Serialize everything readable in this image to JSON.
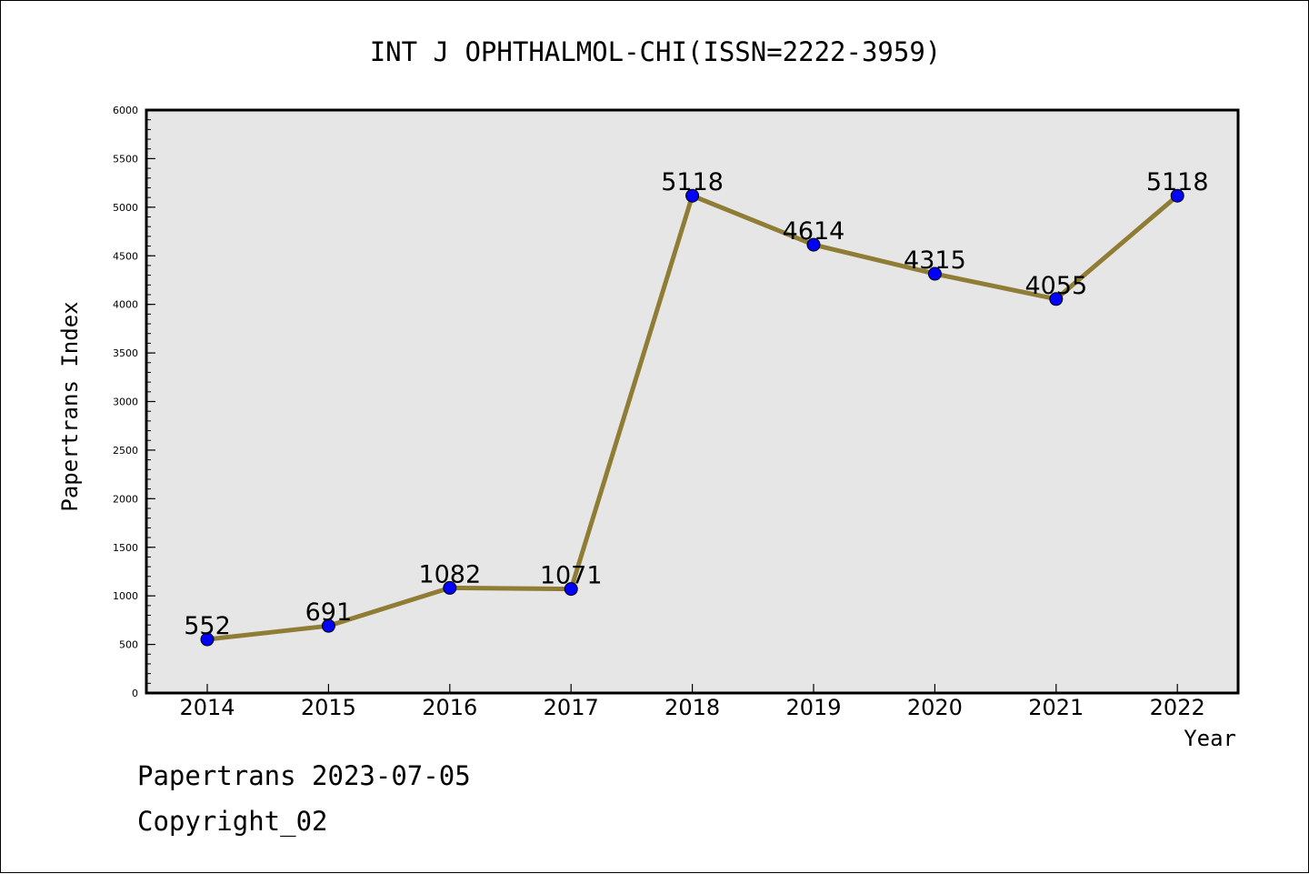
{
  "chart_data": {
    "type": "line",
    "title": "INT J OPHTHALMOL-CHI(ISSN=2222-3959)",
    "xlabel": "Year",
    "ylabel": "Papertrans Index",
    "categories": [
      "2014",
      "2015",
      "2016",
      "2017",
      "2018",
      "2019",
      "2020",
      "2021",
      "2022"
    ],
    "series": [
      {
        "values": [
          552,
          691,
          1082,
          1071,
          5118,
          4614,
          4315,
          4055,
          5118
        ]
      }
    ],
    "data_labels": [
      "552",
      "691",
      "1082",
      "1071",
      "5118",
      "4614",
      "4315",
      "4055",
      "5118"
    ],
    "ylim": [
      0,
      6000
    ],
    "yticks": [
      "0",
      "500",
      "1000",
      "1500",
      "2000",
      "2500",
      "3000",
      "3500",
      "4000",
      "4500",
      "5000",
      "5500",
      "6000"
    ],
    "grid": false,
    "colors": {
      "line": "#8f7d35",
      "marker": "#0000ff",
      "plot_background": "#e6e6e6"
    }
  },
  "footer": {
    "line1": "Papertrans 2023-07-05",
    "line2": "Copyright_02"
  }
}
